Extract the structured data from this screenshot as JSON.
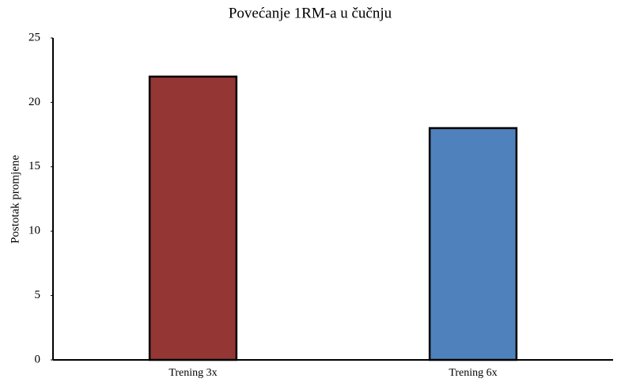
{
  "chart_data": {
    "type": "bar",
    "title": "Povećanje 1RM-a u čučnju",
    "y_label": "Postotak promjene",
    "categories": [
      "Trening 3x",
      "Trening 6x"
    ],
    "values": [
      22,
      18
    ],
    "colors": [
      "#943634",
      "#4f81bd"
    ],
    "ylim": [
      0,
      25
    ],
    "yticks": [
      0,
      5,
      10,
      15,
      20,
      25
    ],
    "grid": false
  }
}
